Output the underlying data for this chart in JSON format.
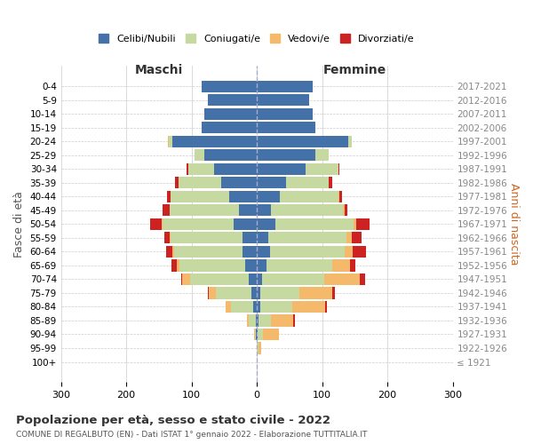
{
  "age_groups": [
    "100+",
    "95-99",
    "90-94",
    "85-89",
    "80-84",
    "75-79",
    "70-74",
    "65-69",
    "60-64",
    "55-59",
    "50-54",
    "45-49",
    "40-44",
    "35-39",
    "30-34",
    "25-29",
    "20-24",
    "15-19",
    "10-14",
    "5-9",
    "0-4"
  ],
  "birth_years": [
    "≤ 1921",
    "1922-1926",
    "1927-1931",
    "1932-1936",
    "1937-1941",
    "1942-1946",
    "1947-1951",
    "1952-1956",
    "1957-1961",
    "1962-1966",
    "1967-1971",
    "1972-1976",
    "1977-1981",
    "1982-1986",
    "1987-1991",
    "1992-1996",
    "1997-2001",
    "2002-2006",
    "2007-2011",
    "2012-2016",
    "2017-2021"
  ],
  "colors": {
    "celibi": "#4472a8",
    "coniugati": "#c5d9a0",
    "vedovi": "#f4b96a",
    "divorziati": "#cc2222"
  },
  "maschi": {
    "celibi": [
      0,
      0,
      1,
      2,
      5,
      8,
      12,
      18,
      22,
      22,
      35,
      28,
      42,
      55,
      65,
      80,
      130,
      85,
      80,
      75,
      85
    ],
    "coniugati": [
      0,
      0,
      2,
      10,
      35,
      55,
      90,
      100,
      105,
      110,
      110,
      105,
      90,
      65,
      40,
      15,
      5,
      0,
      0,
      0,
      0
    ],
    "vedovi": [
      0,
      0,
      1,
      3,
      8,
      10,
      12,
      5,
      2,
      2,
      1,
      1,
      0,
      0,
      0,
      1,
      1,
      0,
      0,
      0,
      0
    ],
    "divorziati": [
      0,
      0,
      0,
      0,
      0,
      2,
      2,
      8,
      10,
      8,
      18,
      10,
      5,
      5,
      2,
      0,
      0,
      0,
      0,
      0,
      0
    ]
  },
  "femmine": {
    "celibi": [
      0,
      0,
      1,
      3,
      5,
      5,
      8,
      15,
      20,
      18,
      28,
      22,
      35,
      45,
      75,
      90,
      140,
      90,
      85,
      80,
      85
    ],
    "coniugati": [
      0,
      2,
      8,
      18,
      50,
      60,
      95,
      100,
      115,
      120,
      120,
      110,
      90,
      65,
      50,
      20,
      5,
      0,
      0,
      0,
      0
    ],
    "vedovi": [
      0,
      5,
      25,
      35,
      50,
      50,
      55,
      28,
      12,
      8,
      5,
      2,
      1,
      0,
      0,
      0,
      0,
      0,
      0,
      0,
      0
    ],
    "divorziati": [
      0,
      0,
      0,
      2,
      2,
      5,
      8,
      8,
      20,
      15,
      20,
      5,
      5,
      5,
      2,
      0,
      0,
      0,
      0,
      0,
      0
    ]
  },
  "xlim": 300,
  "title": "Popolazione per età, sesso e stato civile - 2022",
  "subtitle": "COMUNE DI REGALBUTO (EN) - Dati ISTAT 1° gennaio 2022 - Elaborazione TUTTITALIA.IT",
  "xlabel_left": "Maschi",
  "xlabel_right": "Femmine",
  "ylabel": "Fasce di età",
  "ylabel_right": "Anni di nascita",
  "legend_labels": [
    "Celibi/Nubili",
    "Coniugati/e",
    "Vedovi/e",
    "Divorziati/e"
  ]
}
